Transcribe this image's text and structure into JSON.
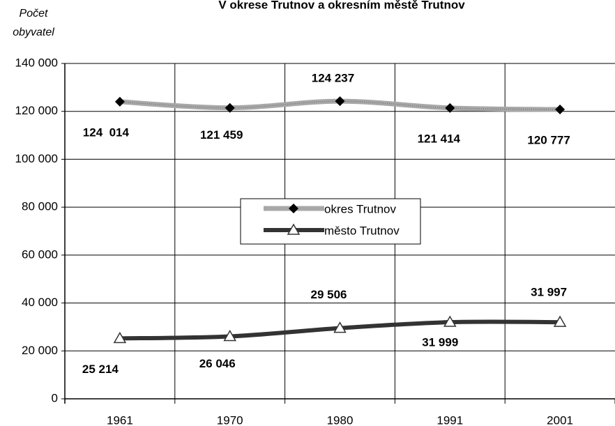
{
  "chart_data": {
    "type": "line",
    "title": "V okrese Trutnov a okresním městě Trutnov",
    "y_label_lines": [
      "Počet",
      "obyvatel"
    ],
    "categories": [
      "1961",
      "1970",
      "1980",
      "1991",
      "2001"
    ],
    "series": [
      {
        "name": "okres Trutnov",
        "color": "#a8a8a8",
        "marker_color": "#000000",
        "values": [
          124014,
          121459,
          124237,
          121414,
          120777
        ],
        "value_labels": [
          "124  014",
          "121 459",
          "124 237",
          "121 414",
          "120 777"
        ]
      },
      {
        "name": "město Trutnov",
        "color": "#333333",
        "marker_color": "#ffffff",
        "values": [
          25214,
          26046,
          29506,
          31999,
          31997
        ],
        "value_labels": [
          "25 214",
          "26 046",
          "29 506",
          "31 999",
          "31 997"
        ]
      }
    ],
    "ylim": [
      0,
      140000
    ],
    "yticks": [
      0,
      {
        "value": 20000,
        "label": "20 000"
      },
      {
        "value": 40000,
        "label": "40 000"
      },
      {
        "value": 60000,
        "label": "60 000"
      },
      {
        "value": 80000,
        "label": "80 000"
      },
      {
        "value": 100000,
        "label": "100 000"
      },
      {
        "value": 120000,
        "label": "120 000"
      },
      {
        "value": 140000,
        "label": "140 000"
      }
    ],
    "grid": true
  }
}
